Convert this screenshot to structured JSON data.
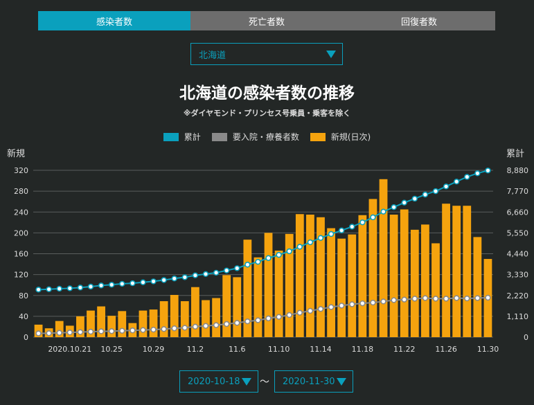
{
  "tabs": [
    {
      "label": "感染者数",
      "active": true
    },
    {
      "label": "死亡者数",
      "active": false
    },
    {
      "label": "回復者数",
      "active": false
    }
  ],
  "region_select": {
    "value": "北海道"
  },
  "date_range": {
    "from": "2020-10-18",
    "separator": "〜",
    "to": "2020-11-30"
  },
  "colors": {
    "background": "#232726",
    "accent": "#0aa0bd",
    "bar": "#f5a30e",
    "grey_line": "#8a8a8a"
  },
  "chart_data": {
    "type": "bar",
    "title": "北海道の感染者数の推移",
    "subtitle": "※ダイヤモンド・プリンセス号乗員・乗客を除く",
    "legend": [
      "累計",
      "要入院・療養者数",
      "新規(日次)"
    ],
    "legend_position": "top",
    "ylabel_left": "新規",
    "ylabel_right": "累計",
    "ylim_left": [
      0,
      320
    ],
    "ylim_right": [
      0,
      8880
    ],
    "yticks_left": [
      "0",
      "40",
      "80",
      "120",
      "160",
      "200",
      "240",
      "280",
      "320"
    ],
    "yticks_right": [
      "0",
      "1,110",
      "2,220",
      "3,330",
      "4,440",
      "5,550",
      "6,660",
      "7,770",
      "8,880"
    ],
    "xtick_labels": [
      "2020.10.21",
      "10.25",
      "10.29",
      "11.2",
      "11.6",
      "11.10",
      "11.14",
      "11.18",
      "11.22",
      "11.26",
      "11.30"
    ],
    "xtick_index": [
      3,
      7,
      11,
      15,
      19,
      23,
      27,
      31,
      35,
      39,
      43
    ],
    "dates": [
      "10.18",
      "10.19",
      "10.20",
      "10.21",
      "10.22",
      "10.23",
      "10.24",
      "10.25",
      "10.26",
      "10.27",
      "10.28",
      "10.29",
      "10.30",
      "10.31",
      "11.1",
      "11.2",
      "11.3",
      "11.4",
      "11.5",
      "11.6",
      "11.7",
      "11.8",
      "11.9",
      "11.10",
      "11.11",
      "11.12",
      "11.13",
      "11.14",
      "11.15",
      "11.16",
      "11.17",
      "11.18",
      "11.19",
      "11.20",
      "11.21",
      "11.22",
      "11.23",
      "11.24",
      "11.25",
      "11.26",
      "11.27",
      "11.28",
      "11.29",
      "11.30"
    ],
    "series": [
      {
        "name": "新規(日次)",
        "type": "bar",
        "values": [
          24,
          17,
          31,
          22,
          40,
          51,
          59,
          41,
          50,
          27,
          51,
          53,
          69,
          81,
          69,
          96,
          71,
          75,
          119,
          115,
          187,
          153,
          200,
          166,
          198,
          236,
          235,
          230,
          209,
          189,
          197,
          234,
          265,
          303,
          235,
          245,
          206,
          216,
          180,
          256,
          252,
          252,
          192,
          150
        ]
      },
      {
        "name": "累計",
        "type": "line",
        "axis": "right",
        "values": [
          2530,
          2550,
          2580,
          2600,
          2640,
          2690,
          2750,
          2790,
          2840,
          2870,
          2920,
          2970,
          3040,
          3120,
          3190,
          3290,
          3360,
          3430,
          3550,
          3670,
          3860,
          4010,
          4210,
          4380,
          4570,
          4810,
          5050,
          5280,
          5490,
          5680,
          5880,
          6110,
          6380,
          6680,
          6920,
          7160,
          7370,
          7590,
          7770,
          8020,
          8280,
          8530,
          8720,
          8870
        ]
      },
      {
        "name": "要入院・療養者数",
        "type": "line",
        "axis": "right",
        "values": [
          200,
          210,
          230,
          250,
          270,
          290,
          310,
          320,
          340,
          360,
          380,
          400,
          430,
          470,
          500,
          560,
          600,
          640,
          700,
          760,
          840,
          900,
          1000,
          1080,
          1180,
          1300,
          1400,
          1500,
          1600,
          1680,
          1750,
          1800,
          1840,
          1900,
          1970,
          2000,
          2050,
          2080,
          2050,
          2050,
          2080,
          2060,
          2080,
          2100
        ]
      }
    ]
  }
}
